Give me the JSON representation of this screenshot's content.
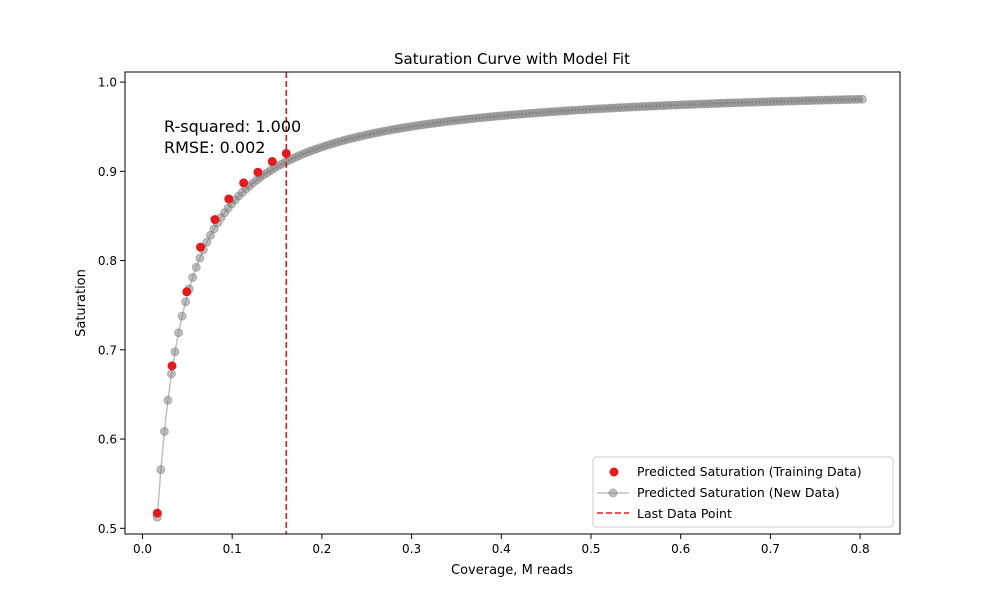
{
  "chart_data": {
    "type": "scatter",
    "title": "Saturation Curve with Model Fit",
    "xlabel": "Coverage, M reads",
    "ylabel": "Saturation",
    "xlim": [
      -0.0195,
      0.8445
    ],
    "ylim": [
      0.4936,
      1.0113
    ],
    "xticks": [
      0.0,
      0.1,
      0.2,
      0.3,
      0.4,
      0.5,
      0.6,
      0.7,
      0.8
    ],
    "xtick_labels": [
      "0.0",
      "0.1",
      "0.2",
      "0.3",
      "0.4",
      "0.5",
      "0.6",
      "0.7",
      "0.8"
    ],
    "yticks": [
      0.5,
      0.6,
      0.7,
      0.8,
      0.9,
      1.0
    ],
    "ytick_labels": [
      "0.5",
      "0.6",
      "0.7",
      "0.8",
      "0.9",
      "1.0"
    ],
    "grid": false,
    "legend_position": "lower-right",
    "annotations": [
      "R-squared: 1.000",
      "RMSE: 0.002"
    ],
    "fit_model": {
      "k": 0.0157,
      "x_min": 0.0165,
      "x_max": 0.8025,
      "n_points": 200
    },
    "series": [
      {
        "name": "Predicted Saturation (Training Data)",
        "kind": "scatter",
        "color": "#e41a1c",
        "x": [
          0.0165,
          0.0329,
          0.0494,
          0.0647,
          0.0807,
          0.0962,
          0.1128,
          0.1287,
          0.1447,
          0.1603
        ],
        "y": [
          0.517,
          0.682,
          0.765,
          0.815,
          0.846,
          0.869,
          0.887,
          0.899,
          0.911,
          0.92
        ]
      },
      {
        "name": "Predicted Saturation (New Data)",
        "kind": "line-marker",
        "color": "#808080"
      },
      {
        "name": "Last Data Point",
        "kind": "vline",
        "color": "#e41a1c",
        "x": 0.1603
      }
    ]
  }
}
